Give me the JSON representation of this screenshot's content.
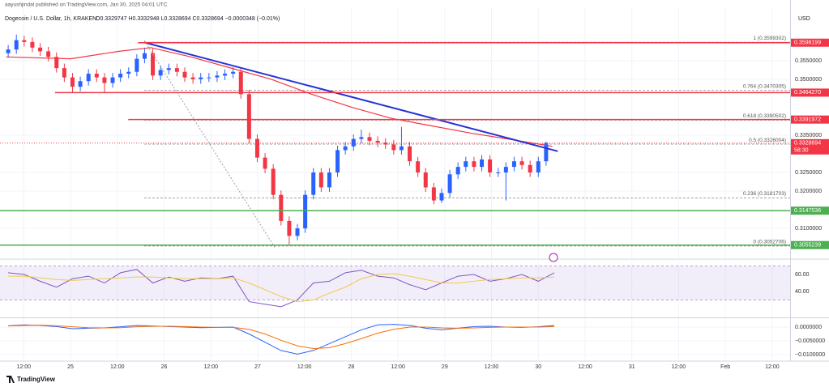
{
  "header": {
    "published": "aayushjindal published on TradingView.com, Jan 30, 2025 04:01 UTC",
    "symbol": "Dogecoin / U.S. Dollar, 1h, KRAKEN",
    "ohlc": "O0.3329747 H0.3332948 L0.3328694 C0.3328694 −0.0000348 (−0.01%)"
  },
  "currency": "USD",
  "branding": "TradingView",
  "chart_data": [
    {
      "type": "candlestick",
      "up_color": "#2962ff",
      "down_color": "#f23645",
      "xlim": [
        -18.1,
        184.6
      ],
      "ylim": [
        0.3022,
        0.3691
      ],
      "xticks": [
        {
          "value": -12,
          "label": "12:00"
        },
        {
          "value": 0,
          "label": "25"
        },
        {
          "value": 12,
          "label": "12:00"
        },
        {
          "value": 24,
          "label": "26"
        },
        {
          "value": 36,
          "label": "12:00"
        },
        {
          "value": 48,
          "label": "27"
        },
        {
          "value": 60,
          "label": "12:00"
        },
        {
          "value": 72,
          "label": "28"
        },
        {
          "value": 84,
          "label": "12:00"
        },
        {
          "value": 96,
          "label": "29"
        },
        {
          "value": 108,
          "label": "12:00"
        },
        {
          "value": 120,
          "label": "30"
        },
        {
          "value": 132,
          "label": "12:00"
        },
        {
          "value": 144,
          "label": "31"
        },
        {
          "value": 156,
          "label": "12:00"
        },
        {
          "value": 168,
          "label": "Feb"
        },
        {
          "value": 180,
          "label": "12:00"
        }
      ],
      "yticks": [
        {
          "value": 0.355,
          "label": "0.3550000"
        },
        {
          "value": 0.35,
          "label": "0.3500000"
        },
        {
          "value": 0.335,
          "label": "0.3350000"
        },
        {
          "value": 0.325,
          "label": "0.3250000"
        },
        {
          "value": 0.32,
          "label": "0.3200000"
        },
        {
          "value": 0.31,
          "label": "0.3100000"
        }
      ],
      "x": [
        -16,
        -13.9,
        -11.9,
        -9.8,
        -7.8,
        -5.7,
        -3.6,
        -1.6,
        0.5,
        2.5,
        4.6,
        6.7,
        8.7,
        10.8,
        12.8,
        14.9,
        17,
        19,
        21.1,
        23.1,
        25.2,
        27.3,
        29.3,
        31.4,
        33.4,
        35.5,
        37.6,
        39.6,
        41.7,
        43.7,
        45.8,
        47.9,
        49.9,
        52,
        54,
        56.1,
        58.2,
        60.2,
        62.3,
        64.3,
        66.4,
        68.5,
        70.5,
        72.6,
        74.6,
        76.7,
        78.8,
        80.8,
        82.9,
        84.9,
        87,
        89.1,
        91.1,
        93.2,
        95.2,
        97.3,
        99.4,
        101.4,
        103.5,
        105.5,
        107.6,
        109.7,
        111.7,
        113.8,
        115.8,
        117.9,
        120,
        122
      ],
      "open": [
        0.357,
        0.358,
        0.3605,
        0.36,
        0.3585,
        0.3575,
        0.356,
        0.353,
        0.3505,
        0.348,
        0.3495,
        0.3515,
        0.3505,
        0.349,
        0.3505,
        0.3515,
        0.352,
        0.3555,
        0.357,
        0.351,
        0.3525,
        0.353,
        0.352,
        0.3505,
        0.35,
        0.3505,
        0.3505,
        0.351,
        0.3515,
        0.352,
        0.346,
        0.334,
        0.329,
        0.326,
        0.319,
        0.312,
        0.308,
        0.31,
        0.319,
        0.325,
        0.321,
        0.325,
        0.331,
        0.332,
        0.334,
        0.3345,
        0.3335,
        0.333,
        0.3325,
        0.331,
        0.332,
        0.328,
        0.325,
        0.321,
        0.3175,
        0.3195,
        0.3245,
        0.3265,
        0.328,
        0.3265,
        0.3285,
        0.325,
        0.325,
        0.3265,
        0.328,
        0.327,
        0.325,
        0.328
      ],
      "high": [
        0.3592,
        0.362,
        0.3617,
        0.3612,
        0.3597,
        0.3587,
        0.3572,
        0.3542,
        0.3517,
        0.3507,
        0.3527,
        0.3527,
        0.3517,
        0.3517,
        0.3527,
        0.3532,
        0.3567,
        0.3585,
        0.3582,
        0.3537,
        0.3542,
        0.3542,
        0.3532,
        0.3517,
        0.3517,
        0.3517,
        0.3522,
        0.3527,
        0.3532,
        0.3532,
        0.3472,
        0.3352,
        0.3302,
        0.3272,
        0.3202,
        0.3132,
        0.3112,
        0.3202,
        0.3262,
        0.3262,
        0.3262,
        0.3322,
        0.3332,
        0.3352,
        0.3365,
        0.3357,
        0.3347,
        0.3342,
        0.3337,
        0.3372,
        0.3332,
        0.3292,
        0.3262,
        0.3222,
        0.3207,
        0.3257,
        0.3277,
        0.3292,
        0.3292,
        0.3297,
        0.3297,
        0.3262,
        0.3277,
        0.3292,
        0.3292,
        0.3282,
        0.3292,
        0.3333
      ],
      "low": [
        0.3558,
        0.3568,
        0.3588,
        0.3573,
        0.3563,
        0.3548,
        0.3518,
        0.3493,
        0.3465,
        0.3468,
        0.3483,
        0.3493,
        0.3466,
        0.3478,
        0.3493,
        0.3503,
        0.3508,
        0.3543,
        0.3498,
        0.3498,
        0.3513,
        0.3508,
        0.3493,
        0.3488,
        0.3488,
        0.3493,
        0.3493,
        0.3498,
        0.3503,
        0.3448,
        0.3328,
        0.3278,
        0.3248,
        0.3178,
        0.3108,
        0.3055,
        0.3068,
        0.3088,
        0.3178,
        0.3198,
        0.3198,
        0.3238,
        0.3298,
        0.3308,
        0.3328,
        0.3323,
        0.3318,
        0.3313,
        0.3298,
        0.3298,
        0.3268,
        0.3238,
        0.3198,
        0.3165,
        0.3168,
        0.3183,
        0.3233,
        0.3253,
        0.3253,
        0.3253,
        0.3238,
        0.3238,
        0.3175,
        0.3253,
        0.3258,
        0.3238,
        0.3238,
        0.3268
      ],
      "close": [
        0.358,
        0.3605,
        0.36,
        0.3585,
        0.3575,
        0.356,
        0.353,
        0.3505,
        0.348,
        0.3495,
        0.3515,
        0.3505,
        0.349,
        0.3505,
        0.3515,
        0.352,
        0.3555,
        0.357,
        0.351,
        0.3525,
        0.353,
        0.352,
        0.3505,
        0.35,
        0.3505,
        0.3505,
        0.351,
        0.3515,
        0.352,
        0.346,
        0.334,
        0.329,
        0.326,
        0.319,
        0.312,
        0.308,
        0.31,
        0.319,
        0.325,
        0.321,
        0.325,
        0.331,
        0.332,
        0.334,
        0.3345,
        0.3335,
        0.333,
        0.3325,
        0.331,
        0.332,
        0.328,
        0.325,
        0.321,
        0.3175,
        0.3195,
        0.3245,
        0.3265,
        0.328,
        0.3265,
        0.3285,
        0.325,
        0.325,
        0.3265,
        0.328,
        0.327,
        0.325,
        0.328,
        0.3329
      ],
      "ma": {
        "color": "#f23645",
        "x": [
          -16.5,
          0,
          12.4,
          20.6,
          30.9,
          41.2,
          51.5,
          61.8,
          72.1,
          82.4,
          92.7,
          103,
          113.3,
          123.6
        ],
        "values": [
          0.356,
          0.3555,
          0.3575,
          0.3585,
          0.356,
          0.353,
          0.35,
          0.346,
          0.3425,
          0.3395,
          0.3375,
          0.3355,
          0.3338,
          0.332
        ]
      },
      "trendline": {
        "color": "#2433d6",
        "x": [
          18.9,
          125
        ],
        "values": [
          0.3599,
          0.3307
        ]
      },
      "levels": [
        {
          "value": 0.3598199,
          "label": "0.3598199",
          "color": "#f23645",
          "start": 17.3
        },
        {
          "value": 0.346427,
          "label": "0.3464270",
          "color": "#f23645",
          "start": -4
        },
        {
          "value": 0.3391972,
          "label": "0.3391972",
          "color": "#f23645",
          "start": 14.8
        },
        {
          "value": 0.3147536,
          "label": "0.3147536",
          "color": "#4caf50",
          "start": -18.1
        },
        {
          "value": 0.3055239,
          "label": "0.3055239",
          "color": "#4caf50",
          "start": -18.1
        }
      ],
      "fib": {
        "color": "#b0a0a0",
        "start": 18.9,
        "levels": [
          {
            "value": 0.3599302,
            "label": "1 (0.3599302)"
          },
          {
            "value": 0.3470305,
            "label": "0.764 (0.3470305)"
          },
          {
            "value": 0.3390502,
            "label": "0.618 (0.3390502)"
          },
          {
            "value": 0.3326004,
            "label": "0.5 (0.3326004)"
          },
          {
            "value": 0.3181703,
            "label": "0.236 (0.3181703)"
          },
          {
            "value": 0.3052706,
            "label": "0 (0.3052706)"
          }
        ]
      },
      "current": {
        "value": 0.3328694,
        "label": "0.3328694",
        "countdown": "58:30",
        "color": "#f23645"
      }
    },
    {
      "type": "line",
      "ylim": [
        9.5,
        76.2
      ],
      "band": [
        30,
        70
      ],
      "yticks": [
        {
          "value": 60,
          "label": "60.00"
        },
        {
          "value": 40,
          "label": "40.00"
        }
      ],
      "x": [
        -16,
        -11.9,
        -7.8,
        -3.6,
        0.5,
        4.6,
        8.7,
        12.8,
        17,
        21.1,
        25.2,
        29.3,
        33.4,
        37.6,
        41.7,
        45.8,
        49.9,
        54,
        58.2,
        62.3,
        66.4,
        70.5,
        74.6,
        78.8,
        82.9,
        87,
        91.1,
        95.2,
        99.4,
        103.5,
        107.6,
        111.7,
        115.8,
        120,
        124.1
      ],
      "series": [
        {
          "color": "#7e57c2",
          "values": [
            62,
            60,
            52,
            45,
            55,
            58,
            50,
            62,
            66,
            50,
            57,
            52,
            56,
            55,
            58,
            28,
            25,
            22,
            30,
            50,
            52,
            62,
            65,
            58,
            56,
            48,
            42,
            50,
            58,
            60,
            52,
            55,
            60,
            52,
            62
          ]
        },
        {
          "color": "#f2c94c",
          "values": [
            58,
            58,
            56,
            54,
            53,
            54,
            55,
            56,
            57,
            57,
            56,
            55,
            55,
            55,
            56,
            50,
            42,
            34,
            28,
            30,
            38,
            45,
            55,
            60,
            61,
            58,
            54,
            50,
            50,
            52,
            54,
            55,
            56,
            56,
            57
          ]
        }
      ]
    },
    {
      "type": "line",
      "ylim": [
        -0.01206,
        0.00324
      ],
      "yticks": [
        {
          "value": 0,
          "label": "0.0000000"
        },
        {
          "value": -0.005,
          "label": "−0.0050000"
        },
        {
          "value": -0.01,
          "label": "−0.0100000"
        }
      ],
      "x": [
        -16,
        -11.9,
        -7.8,
        -3.6,
        0.5,
        4.6,
        8.7,
        12.8,
        17,
        21.1,
        25.2,
        29.3,
        33.4,
        37.6,
        41.7,
        45.8,
        49.9,
        54,
        58.2,
        62.3,
        66.4,
        70.5,
        74.6,
        78.8,
        82.9,
        87,
        91.1,
        95.2,
        99.4,
        103.5,
        107.6,
        111.7,
        115.8,
        120,
        124.1
      ],
      "series": [
        {
          "color": "#2962ff",
          "values": [
            0.0005,
            0.0008,
            0.0006,
            0.0002,
            -0.0006,
            -0.0004,
            -0.0003,
            0.0001,
            0.0006,
            0.0004,
            0.0002,
            0,
            -0.0002,
            -0.0001,
            0,
            -0.0025,
            -0.0055,
            -0.0085,
            -0.0098,
            -0.0085,
            -0.006,
            -0.0035,
            -0.001,
            0.0008,
            0.001,
            0.0006,
            -0.0004,
            -0.001,
            -0.0004,
            0.0002,
            0.0003,
            0,
            -0.0001,
            0.0001,
            0.0006
          ]
        },
        {
          "color": "#ff6d00",
          "values": [
            0.0004,
            0.0006,
            0.0007,
            0.0005,
            0.0001,
            -0.0002,
            -0.0003,
            -0.0002,
            0.0001,
            0.0003,
            0.0003,
            0.0002,
            0,
            -0.0001,
            -0.0001,
            -0.0008,
            -0.0025,
            -0.0048,
            -0.0068,
            -0.0078,
            -0.0075,
            -0.006,
            -0.0042,
            -0.0022,
            -0.0008,
            0,
            0,
            -0.0003,
            -0.0004,
            -0.0003,
            -0.0001,
            0,
            0,
            0,
            0.0002
          ]
        }
      ]
    }
  ]
}
